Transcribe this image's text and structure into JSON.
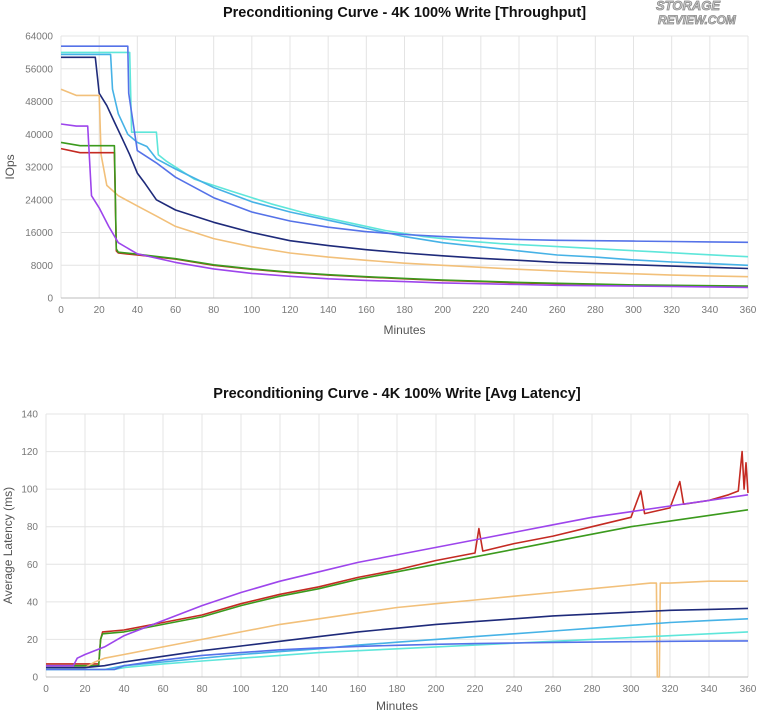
{
  "logo": {
    "line1": "STORAGE",
    "line2": "REVIEW.COM"
  },
  "colors": {
    "turquoise": "#5ee6da",
    "sky": "#46b2e6",
    "blue": "#5572e8",
    "navy": "#1e2a7a",
    "tan": "#f2c07a",
    "red": "#c42a22",
    "green": "#3b9a1d",
    "purple": "#9d45ec"
  },
  "chart_data": [
    {
      "type": "line",
      "title": "Preconditioning Curve - 4K 100% Write [Throughput]",
      "xlabel": "Minutes",
      "ylabel": "IOps",
      "xlim": [
        0,
        360
      ],
      "ylim": [
        0,
        64000
      ],
      "xticks": [
        0,
        20,
        40,
        60,
        80,
        100,
        120,
        140,
        160,
        180,
        200,
        220,
        240,
        260,
        280,
        300,
        320,
        340,
        360
      ],
      "yticks": [
        0,
        8000,
        16000,
        24000,
        32000,
        40000,
        48000,
        56000,
        64000
      ],
      "grid": true,
      "legend": "none",
      "series": [
        {
          "name": "turquoise",
          "color": "#5ee6da",
          "x": [
            0,
            36,
            37,
            40,
            50,
            51,
            55,
            70,
            90,
            110,
            130,
            150,
            170,
            190,
            210,
            230,
            250,
            270,
            290,
            310,
            330,
            350,
            360
          ],
          "values": [
            60000,
            60000,
            40500,
            40500,
            40500,
            35000,
            33500,
            29000,
            26000,
            23000,
            20500,
            18500,
            16500,
            15000,
            14000,
            13300,
            12800,
            12300,
            11800,
            11300,
            10800,
            10300,
            10100
          ]
        },
        {
          "name": "sky",
          "color": "#46b2e6",
          "x": [
            0,
            26,
            27,
            30,
            35,
            40,
            45,
            50,
            60,
            80,
            100,
            120,
            140,
            160,
            180,
            200,
            220,
            240,
            260,
            280,
            300,
            320,
            340,
            360
          ],
          "values": [
            59500,
            59500,
            51000,
            45000,
            40000,
            38000,
            37000,
            34000,
            31500,
            27000,
            23500,
            21000,
            19000,
            17000,
            15000,
            13500,
            12500,
            11500,
            10500,
            10000,
            9300,
            8800,
            8400,
            8000
          ]
        },
        {
          "name": "blue",
          "color": "#5572e8",
          "x": [
            0,
            35,
            35.5,
            40,
            50,
            60,
            80,
            100,
            120,
            140,
            160,
            180,
            200,
            220,
            240,
            260,
            280,
            300,
            320,
            340,
            360
          ],
          "values": [
            61500,
            61500,
            50000,
            36000,
            33000,
            29500,
            24500,
            21000,
            18800,
            17300,
            16200,
            15500,
            15000,
            14600,
            14300,
            14100,
            14000,
            13900,
            13800,
            13700,
            13600
          ]
        },
        {
          "name": "navy",
          "color": "#1e2a7a",
          "x": [
            0,
            18,
            20,
            24,
            28,
            32,
            36,
            40,
            44,
            50,
            60,
            70,
            80,
            100,
            120,
            140,
            160,
            180,
            200,
            220,
            240,
            260,
            280,
            300,
            320,
            340,
            360
          ],
          "values": [
            58800,
            58800,
            50000,
            47000,
            43000,
            39000,
            35000,
            30500,
            28000,
            24000,
            21500,
            20000,
            18500,
            16000,
            14000,
            12800,
            11800,
            11000,
            10300,
            9700,
            9200,
            8700,
            8400,
            8100,
            7800,
            7500,
            7200
          ]
        },
        {
          "name": "tan",
          "color": "#f2c07a",
          "x": [
            0,
            8,
            20,
            21,
            24,
            30,
            40,
            50,
            60,
            80,
            100,
            120,
            140,
            160,
            180,
            200,
            220,
            240,
            260,
            280,
            300,
            320,
            340,
            360
          ],
          "values": [
            51000,
            49500,
            49500,
            35000,
            27500,
            25000,
            22500,
            20000,
            17500,
            14500,
            12500,
            11000,
            10000,
            9200,
            8500,
            8000,
            7500,
            7000,
            6600,
            6200,
            5900,
            5600,
            5400,
            5200
          ]
        },
        {
          "name": "red",
          "color": "#c42a22",
          "x": [
            0,
            10,
            28,
            29,
            30,
            40,
            60,
            80,
            100,
            120,
            140,
            160,
            180,
            200,
            220,
            240,
            260,
            280,
            300,
            320,
            340,
            360
          ],
          "values": [
            36500,
            35500,
            35500,
            11500,
            11000,
            10500,
            9500,
            8000,
            7000,
            6200,
            5600,
            5100,
            4700,
            4300,
            4000,
            3700,
            3500,
            3300,
            3100,
            3000,
            2900,
            2800
          ]
        },
        {
          "name": "green",
          "color": "#3b9a1d",
          "x": [
            0,
            10,
            28,
            29,
            30,
            40,
            60,
            80,
            100,
            120,
            140,
            160,
            180,
            200,
            220,
            240,
            260,
            280,
            300,
            320,
            340,
            360
          ],
          "values": [
            38000,
            37200,
            37200,
            12000,
            11200,
            10700,
            9600,
            8100,
            7100,
            6300,
            5700,
            5200,
            4800,
            4400,
            4100,
            3800,
            3600,
            3400,
            3200,
            3100,
            3000,
            2900
          ]
        },
        {
          "name": "purple",
          "color": "#9d45ec",
          "x": [
            0,
            8,
            14,
            16,
            20,
            25,
            30,
            40,
            60,
            80,
            100,
            120,
            140,
            160,
            180,
            200,
            220,
            240,
            260,
            280,
            300,
            320,
            340,
            360
          ],
          "values": [
            42500,
            42000,
            42000,
            25000,
            22000,
            17500,
            13500,
            10800,
            8700,
            7100,
            6000,
            5300,
            4700,
            4300,
            4000,
            3700,
            3500,
            3300,
            3100,
            3000,
            2900,
            2800,
            2700,
            2600
          ]
        }
      ]
    },
    {
      "type": "line",
      "title": "Preconditioning Curve - 4K 100% Write [Avg Latency]",
      "xlabel": "Minutes",
      "ylabel": "Average Latency (ms)",
      "xlim": [
        0,
        360
      ],
      "ylim": [
        0,
        140
      ],
      "xticks": [
        0,
        20,
        40,
        60,
        80,
        100,
        120,
        140,
        160,
        180,
        200,
        220,
        240,
        260,
        280,
        300,
        320,
        340,
        360
      ],
      "yticks": [
        0,
        20,
        40,
        60,
        80,
        100,
        120,
        140
      ],
      "grid": true,
      "legend": "none",
      "series": [
        {
          "name": "red",
          "color": "#c42a22",
          "x": [
            0,
            27,
            28,
            29,
            40,
            60,
            80,
            100,
            120,
            140,
            160,
            180,
            200,
            220,
            222,
            224,
            240,
            260,
            280,
            300,
            305,
            307,
            320,
            325,
            327,
            340,
            350,
            355,
            357,
            358,
            359,
            360
          ],
          "values": [
            7,
            7,
            20,
            24,
            25,
            29,
            33,
            39,
            44,
            48,
            53,
            57,
            62,
            66,
            79,
            67,
            71,
            75,
            80,
            85,
            99,
            87,
            90,
            104,
            92,
            94,
            97,
            99,
            120,
            100,
            114,
            98
          ]
        },
        {
          "name": "green",
          "color": "#3b9a1d",
          "x": [
            0,
            27,
            28,
            29,
            40,
            60,
            80,
            100,
            120,
            140,
            160,
            180,
            200,
            220,
            240,
            260,
            280,
            300,
            320,
            340,
            360
          ],
          "values": [
            6,
            6,
            20,
            23,
            24,
            28,
            32,
            38,
            43,
            47,
            52,
            56,
            60,
            64,
            68,
            72,
            76,
            80,
            83,
            86,
            89
          ]
        },
        {
          "name": "purple",
          "color": "#9d45ec",
          "x": [
            0,
            14,
            16,
            20,
            30,
            40,
            60,
            80,
            100,
            120,
            140,
            160,
            180,
            200,
            220,
            240,
            260,
            280,
            300,
            320,
            340,
            360
          ],
          "values": [
            6,
            6,
            10,
            12,
            16,
            22,
            30,
            38,
            45,
            51,
            56,
            61,
            65,
            69,
            73,
            77,
            81,
            85,
            88,
            91,
            94,
            97
          ]
        },
        {
          "name": "tan",
          "color": "#f2c07a",
          "x": [
            0,
            20,
            25,
            30,
            40,
            60,
            80,
            100,
            120,
            140,
            160,
            180,
            200,
            220,
            240,
            260,
            280,
            300,
            310,
            313,
            313.5,
            314.5,
            315,
            320,
            340,
            360
          ],
          "values": [
            5,
            5,
            8,
            10,
            12,
            16,
            20,
            24,
            28,
            31,
            34,
            37,
            39,
            41,
            43,
            45,
            47,
            49,
            50,
            50,
            0,
            0,
            50,
            50,
            51,
            51
          ]
        },
        {
          "name": "navy",
          "color": "#1e2a7a",
          "x": [
            0,
            20,
            30,
            40,
            60,
            80,
            100,
            120,
            140,
            160,
            180,
            200,
            220,
            240,
            260,
            280,
            300,
            320,
            340,
            360
          ],
          "values": [
            5,
            5,
            6,
            8,
            11,
            14,
            16.5,
            19,
            21.5,
            24,
            26,
            28,
            29.5,
            31,
            32.5,
            33.5,
            34.5,
            35.5,
            36,
            36.5
          ]
        },
        {
          "name": "sky",
          "color": "#46b2e6",
          "x": [
            0,
            30,
            40,
            60,
            80,
            100,
            120,
            140,
            160,
            180,
            200,
            220,
            240,
            260,
            280,
            300,
            320,
            340,
            360
          ],
          "values": [
            4,
            4,
            6,
            8,
            10,
            12,
            13.5,
            15,
            17,
            18.5,
            20,
            21.5,
            23,
            24.5,
            26,
            27.5,
            29,
            30,
            31
          ]
        },
        {
          "name": "turquoise",
          "color": "#5ee6da",
          "x": [
            0,
            35,
            40,
            60,
            80,
            100,
            120,
            140,
            160,
            180,
            200,
            220,
            240,
            260,
            280,
            300,
            320,
            340,
            360
          ],
          "values": [
            4,
            4,
            5,
            7,
            8.5,
            10,
            11.5,
            13,
            14,
            15,
            16,
            17,
            18,
            19,
            20,
            21,
            22,
            23,
            24
          ]
        },
        {
          "name": "blue",
          "color": "#5572e8",
          "x": [
            0,
            35,
            40,
            60,
            80,
            100,
            120,
            140,
            160,
            180,
            200,
            220,
            240,
            260,
            280,
            300,
            320,
            340,
            360
          ],
          "values": [
            4,
            4,
            6,
            9,
            11.5,
            13,
            14.5,
            15.5,
            16.3,
            16.9,
            17.4,
            17.8,
            18.1,
            18.4,
            18.6,
            18.8,
            19,
            19.1,
            19.2
          ]
        }
      ]
    }
  ]
}
